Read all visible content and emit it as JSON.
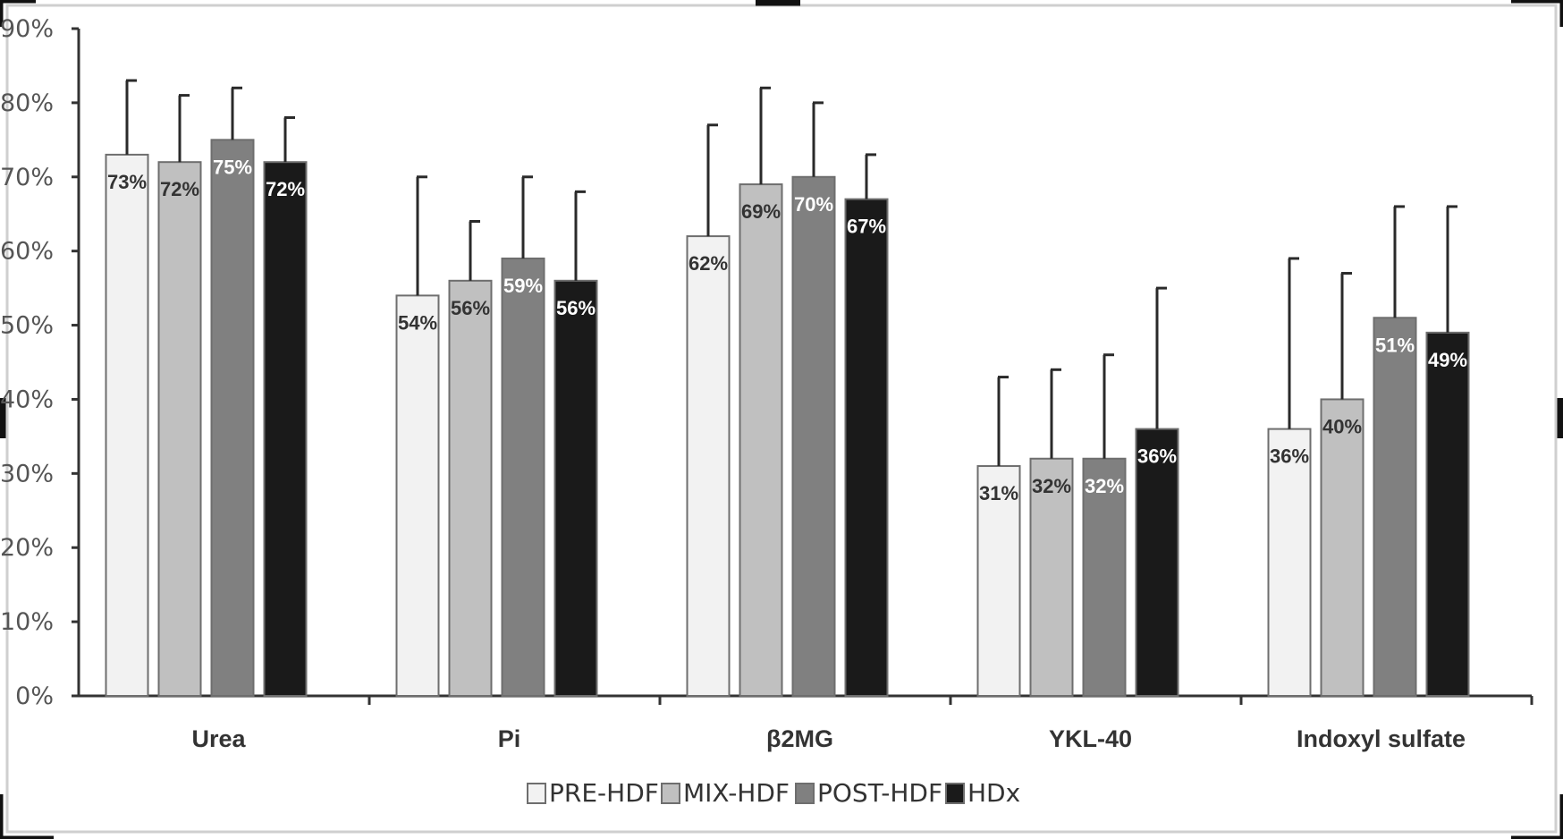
{
  "chart_data": {
    "type": "bar",
    "title": "",
    "xlabel": "",
    "ylabel": "",
    "ylim": [
      0,
      90
    ],
    "yticks": [
      "0%",
      "10%",
      "20%",
      "30%",
      "40%",
      "50%",
      "60%",
      "70%",
      "80%",
      "90%"
    ],
    "categories": [
      "Urea",
      "Pi",
      "β2MG",
      "YKL-40",
      "Indoxyl sulfate"
    ],
    "error_bars": true,
    "legend_position": "bottom-center",
    "series": [
      {
        "name": "PRE-HDF",
        "color": "#f2f2f2",
        "label_color": "#333333",
        "values": [
          73,
          54,
          62,
          31,
          36
        ],
        "labels": [
          "73%",
          "54%",
          "62%",
          "31%",
          "36%"
        ],
        "upper": [
          83,
          70,
          77,
          43,
          59
        ]
      },
      {
        "name": "MIX-HDF",
        "color": "#c0c0c0",
        "label_color": "#333333",
        "values": [
          72,
          56,
          69,
          32,
          40
        ],
        "labels": [
          "72%",
          "56%",
          "69%",
          "32%",
          "40%"
        ],
        "upper": [
          81,
          64,
          82,
          44,
          57
        ]
      },
      {
        "name": "POST-HDF",
        "color": "#808080",
        "label_color": "#ffffff",
        "values": [
          75,
          59,
          70,
          32,
          51
        ],
        "labels": [
          "75%",
          "59%",
          "70%",
          "32%",
          "51%"
        ],
        "upper": [
          82,
          70,
          80,
          46,
          66
        ]
      },
      {
        "name": "HDx",
        "color": "#1a1a1a",
        "label_color": "#ffffff",
        "values": [
          72,
          56,
          67,
          36,
          49
        ],
        "labels": [
          "72%",
          "56%",
          "67%",
          "36%",
          "49%"
        ],
        "upper": [
          78,
          68,
          73,
          55,
          66
        ]
      }
    ]
  }
}
